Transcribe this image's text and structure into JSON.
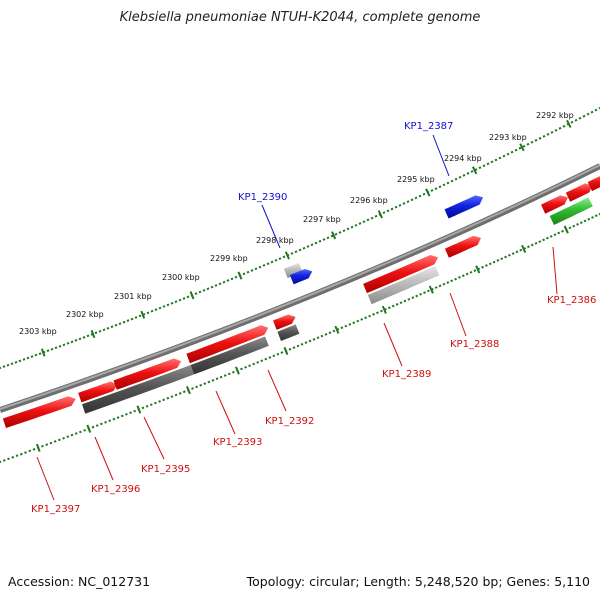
{
  "title": "Klebsiella pneumoniae NTUH-K2044, complete genome",
  "footer": {
    "accession": "Accession: NC_012731",
    "summary": "Topology: circular; Length: 5,248,520 bp; Genes: 5,110"
  },
  "colors": {
    "forward_gene": "#ee1111",
    "highlight_blue": "#1122dd",
    "highlight_green": "#33bb33",
    "gray_dark": "#555555",
    "gray_light": "#bbbbbb",
    "tick_green": "#227722",
    "label_red": "#cc1111",
    "label_blue": "#1111cc"
  },
  "scale_labels": [
    "2292 kbp",
    "2293 kbp",
    "2294 kbp",
    "2295 kbp",
    "2296 kbp",
    "2297 kbp",
    "2298 kbp",
    "2299 kbp",
    "2300 kbp",
    "2301 kbp",
    "2302 kbp",
    "2303 kbp"
  ],
  "gene_labels": [
    {
      "text": "KP1_2387",
      "color": "blue"
    },
    {
      "text": "KP1_2390",
      "color": "blue"
    },
    {
      "text": "KP1_2386",
      "color": "red"
    },
    {
      "text": "KP1_2388",
      "color": "red"
    },
    {
      "text": "KP1_2389",
      "color": "red"
    },
    {
      "text": "KP1_2392",
      "color": "red"
    },
    {
      "text": "KP1_2393",
      "color": "red"
    },
    {
      "text": "KP1_2395",
      "color": "red"
    },
    {
      "text": "KP1_2396",
      "color": "red"
    },
    {
      "text": "KP1_2397",
      "color": "red"
    }
  ]
}
